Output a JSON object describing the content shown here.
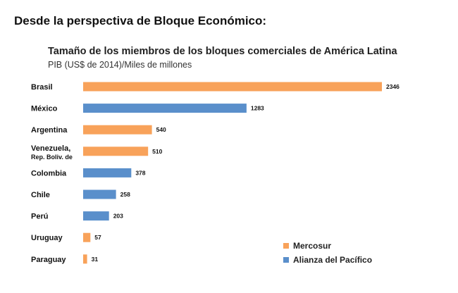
{
  "page": {
    "heading": "Desde la perspectiva de Bloque Económico:"
  },
  "chart_data": {
    "type": "bar",
    "orientation": "horizontal",
    "title": "Tamaño de los miembros de los bloques comerciales de América Latina",
    "subtitle": "PIB (US$ de 2014)/Miles de millones",
    "xlabel": "",
    "ylabel": "",
    "xlim": [
      0,
      2346
    ],
    "grid": false,
    "legend_position": "bottom-right",
    "categories": [
      [
        "Brasil"
      ],
      [
        "México"
      ],
      [
        "Argentina"
      ],
      [
        "Venezuela,",
        "Rep. Boliv. de"
      ],
      [
        "Colombia"
      ],
      [
        "Chile"
      ],
      [
        "Perú"
      ],
      [
        "Uruguay"
      ],
      [
        "Paraguay"
      ]
    ],
    "values": [
      2346,
      1283,
      540,
      510,
      378,
      258,
      203,
      57,
      31
    ],
    "bloc": [
      "Mercosur",
      "Alianza del Pacífico",
      "Mercosur",
      "Mercosur",
      "Alianza del Pacífico",
      "Alianza del Pacífico",
      "Alianza del Pacífico",
      "Mercosur",
      "Mercosur"
    ],
    "legend": [
      {
        "name": "Mercosur",
        "color": "#f8a25a"
      },
      {
        "name": "Alianza del Pacífico",
        "color": "#5a8fcb"
      }
    ]
  }
}
